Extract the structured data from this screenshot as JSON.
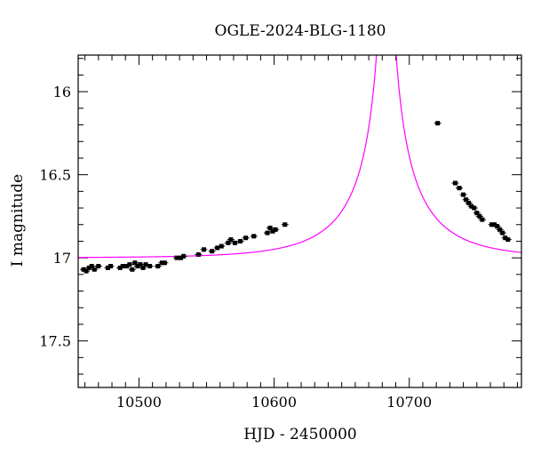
{
  "chart_data": {
    "type": "scatter",
    "title": "OGLE-2024-BLG-1180",
    "xlabel": "HJD - 2450000",
    "ylabel": "I magnitude",
    "xlim": [
      10455,
      10783
    ],
    "ylim": [
      17.78,
      15.78
    ],
    "y_inverted": true,
    "x_ticks": [
      10500,
      10600,
      10700
    ],
    "x_tick_labels": [
      "10500",
      "10600",
      "10700"
    ],
    "y_ticks": [
      16,
      16.5,
      17,
      17.5
    ],
    "y_tick_labels": [
      "16",
      "16.5",
      "17",
      "17.5"
    ],
    "grid": false,
    "colors": {
      "data": "#000000",
      "model": "#ff00ff"
    },
    "series": [
      {
        "kind": "points",
        "points": [
          [
            10459,
            17.07
          ],
          [
            10461,
            17.08
          ],
          [
            10463,
            17.06
          ],
          [
            10465,
            17.05
          ],
          [
            10467,
            17.07
          ],
          [
            10470,
            17.05
          ],
          [
            10477,
            17.06
          ],
          [
            10479,
            17.05
          ],
          [
            10486,
            17.06
          ],
          [
            10488,
            17.05
          ],
          [
            10491,
            17.05
          ],
          [
            10493,
            17.04
          ],
          [
            10495,
            17.07
          ],
          [
            10497,
            17.03
          ],
          [
            10499,
            17.05
          ],
          [
            10501,
            17.04
          ],
          [
            10503,
            17.06
          ],
          [
            10505,
            17.04
          ],
          [
            10508,
            17.05
          ],
          [
            10514,
            17.05
          ],
          [
            10517,
            17.03
          ],
          [
            10519,
            17.03
          ],
          [
            10528,
            17.0
          ],
          [
            10531,
            17.0
          ],
          [
            10533,
            16.99
          ],
          [
            10544,
            16.98
          ],
          [
            10548,
            16.95
          ],
          [
            10554,
            16.96
          ],
          [
            10558,
            16.94
          ],
          [
            10561,
            16.93
          ],
          [
            10566,
            16.91
          ],
          [
            10568,
            16.89
          ],
          [
            10571,
            16.91
          ],
          [
            10575,
            16.9
          ],
          [
            10579,
            16.88
          ],
          [
            10585,
            16.87
          ],
          [
            10595,
            16.85
          ],
          [
            10597,
            16.82
          ],
          [
            10599,
            16.84
          ],
          [
            10601,
            16.83
          ],
          [
            10608,
            16.8
          ],
          [
            10721,
            16.19
          ],
          [
            10734,
            16.55
          ],
          [
            10737,
            16.58
          ],
          [
            10740,
            16.62
          ],
          [
            10742,
            16.65
          ],
          [
            10744,
            16.67
          ],
          [
            10746,
            16.69
          ],
          [
            10748,
            16.7
          ],
          [
            10750,
            16.73
          ],
          [
            10752,
            16.75
          ],
          [
            10754,
            16.77
          ],
          [
            10761,
            16.8
          ],
          [
            10763,
            16.8
          ],
          [
            10765,
            16.81
          ],
          [
            10767,
            16.83
          ],
          [
            10769,
            16.85
          ],
          [
            10771,
            16.88
          ],
          [
            10773,
            16.89
          ]
        ]
      },
      {
        "kind": "model",
        "curve": {
          "t0": 10683,
          "tE": 62,
          "u0": 0.004,
          "I_source": 18.4,
          "I_blend": 17.35,
          "t_range": [
            10455,
            10783
          ]
        }
      }
    ]
  }
}
